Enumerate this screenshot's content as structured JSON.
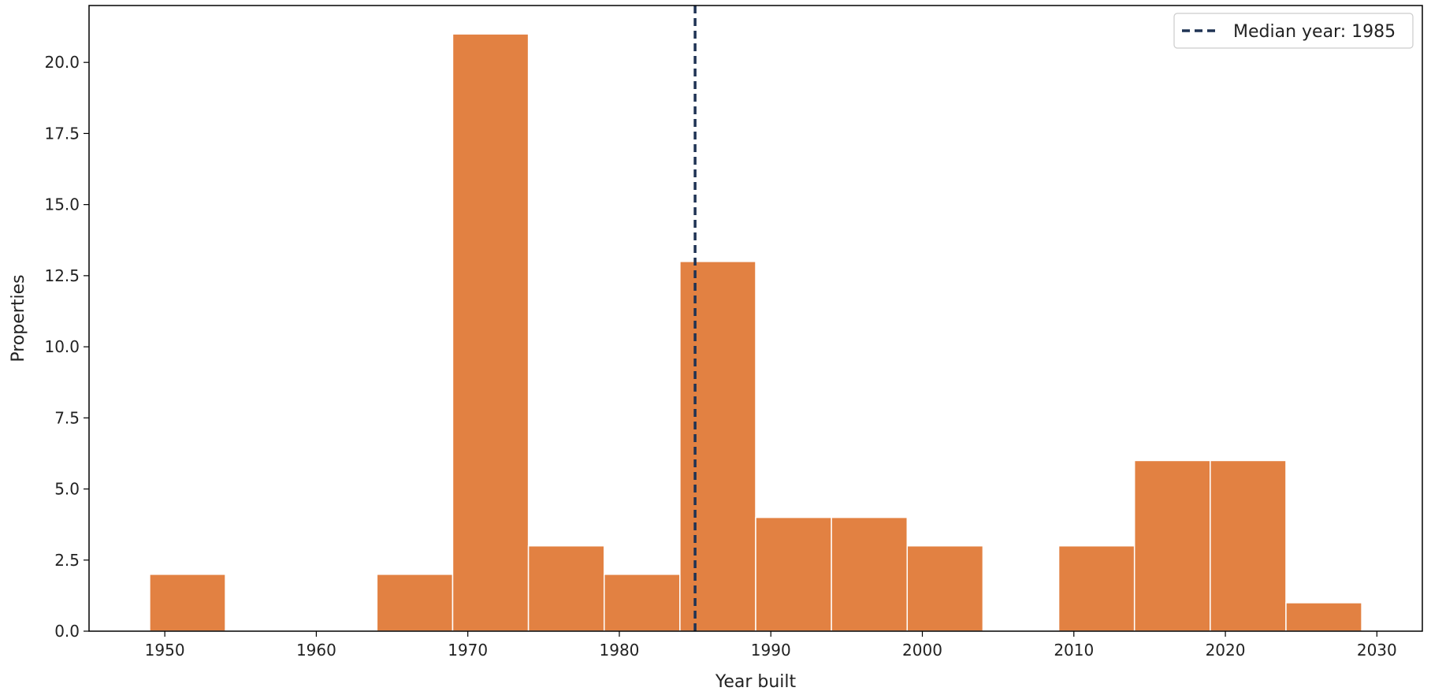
{
  "chart_data": {
    "type": "bar",
    "title": "",
    "xlabel": "Year built",
    "ylabel": "Properties",
    "xlim": [
      1945,
      2033
    ],
    "ylim": [
      0,
      22
    ],
    "xticks": [
      1950,
      1960,
      1970,
      1980,
      1990,
      2000,
      2010,
      2020,
      2030
    ],
    "yticks": [
      0.0,
      2.5,
      5.0,
      7.5,
      10.0,
      12.5,
      15.0,
      17.5,
      20.0
    ],
    "xtick_labels": [
      "1950",
      "1960",
      "1970",
      "1980",
      "1990",
      "2000",
      "2010",
      "2020",
      "2030"
    ],
    "ytick_labels": [
      "0.0",
      "2.5",
      "5.0",
      "7.5",
      "10.0",
      "12.5",
      "15.0",
      "17.5",
      "20.0"
    ],
    "bin_edges": [
      1949,
      1954,
      1959,
      1964,
      1969,
      1974,
      1979,
      1984,
      1989,
      1994,
      1999,
      2004,
      2009,
      2014,
      2019,
      2024,
      2029
    ],
    "values": [
      2,
      0,
      0,
      2,
      21,
      3,
      2,
      13,
      4,
      4,
      3,
      0,
      3,
      6,
      6,
      1
    ],
    "bar_color": "#E28142",
    "bar_edge_color": "#ffffff",
    "median": {
      "value": 1985,
      "label": "Median year: 1985",
      "color": "#1F3354",
      "style": "dashed"
    },
    "grid": false,
    "legend": {
      "position": "top-right"
    }
  }
}
